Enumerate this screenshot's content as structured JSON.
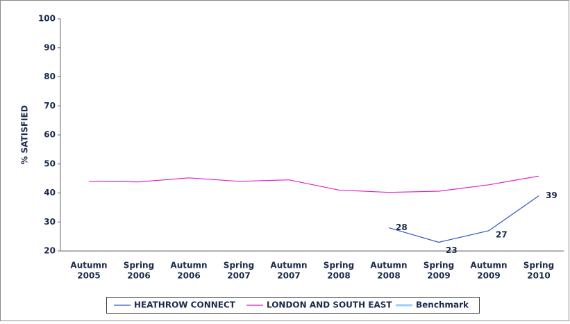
{
  "chart_data": {
    "type": "line",
    "ylabel": "% SATISFIED",
    "categories": [
      [
        "Autumn",
        "2005"
      ],
      [
        "Spring",
        "2006"
      ],
      [
        "Autumn",
        "2006"
      ],
      [
        "Spring",
        "2007"
      ],
      [
        "Autumn",
        "2007"
      ],
      [
        "Spring",
        "2008"
      ],
      [
        "Autumn",
        "2008"
      ],
      [
        "Spring",
        "2009"
      ],
      [
        "Autumn",
        "2009"
      ],
      [
        "Spring",
        "2010"
      ]
    ],
    "series": [
      {
        "name": "HEATHROW CONNECT",
        "color": "#3355cc",
        "values": [
          null,
          null,
          null,
          null,
          null,
          null,
          28,
          23,
          27,
          39
        ],
        "show_labels": true
      },
      {
        "name": "LONDON AND SOUTH EAST",
        "color": "#dd22cc",
        "values": [
          44,
          43.8,
          45.2,
          44,
          44.5,
          41,
          40.2,
          40.6,
          42.8,
          45.8
        ],
        "show_labels": false
      },
      {
        "name": "Benchmark",
        "color": "#99ccff",
        "values": [
          null,
          null,
          null,
          null,
          null,
          null,
          null,
          null,
          null,
          null
        ],
        "show_labels": false
      }
    ],
    "ylim": [
      20,
      100
    ],
    "yticks": [
      20,
      30,
      40,
      50,
      60,
      70,
      80,
      90,
      100
    ],
    "grid": false
  }
}
